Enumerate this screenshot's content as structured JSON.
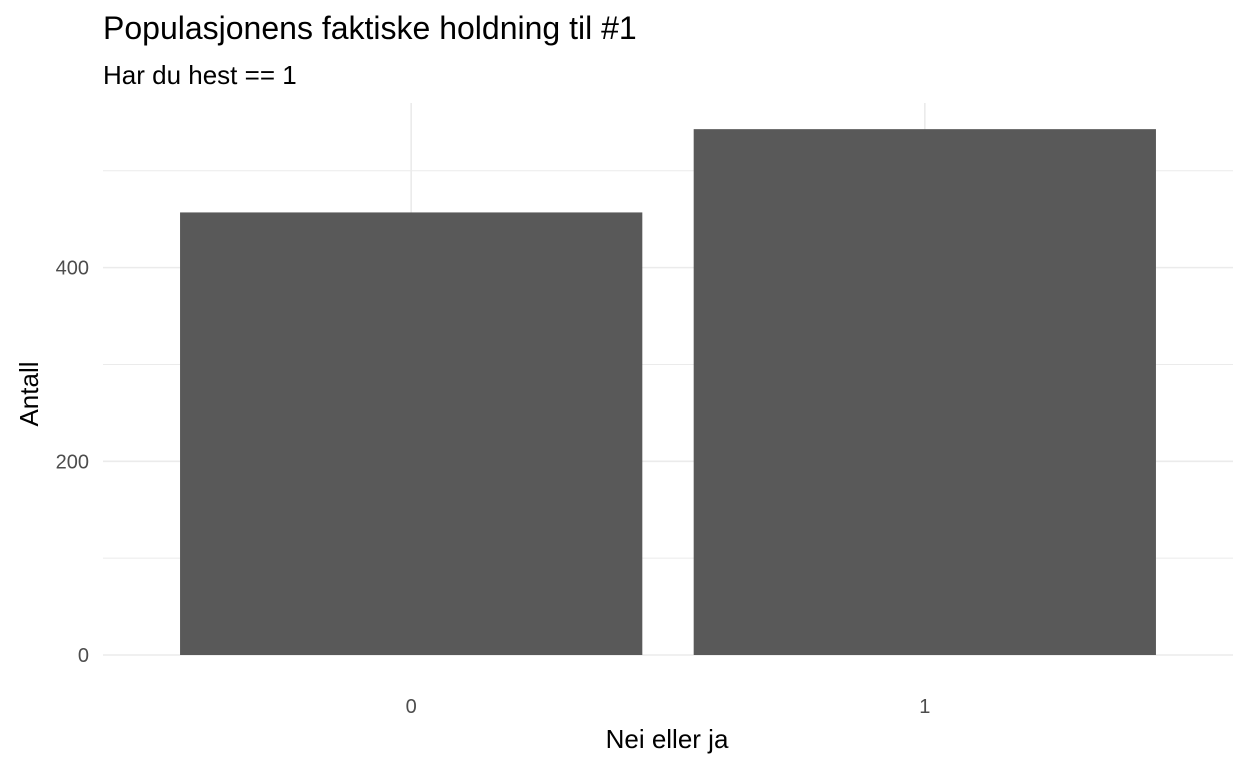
{
  "chart_data": {
    "type": "bar",
    "title": "Populasjonens faktiske holdning til #1",
    "subtitle": "Har du hest == 1",
    "xlabel": "Nei eller ja",
    "ylabel": "Antall",
    "categories": [
      "0",
      "1"
    ],
    "values": [
      457,
      543
    ],
    "ylim": [
      0,
      570
    ],
    "y_ticks": [
      0,
      200,
      400
    ],
    "y_tick_labels": [
      "0",
      "200",
      "400"
    ],
    "grid": true,
    "bar_color": "#595959",
    "grid_color": "#ebebeb"
  }
}
